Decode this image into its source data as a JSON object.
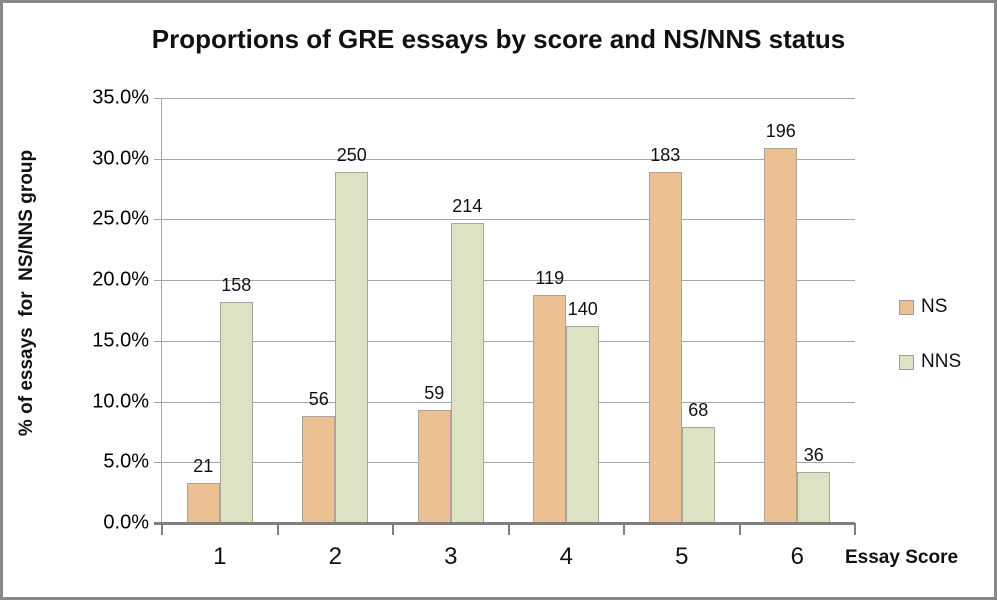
{
  "chart_data": {
    "type": "bar",
    "title": "Proportions of GRE essays by score and NS/NNS status",
    "xlabel": "Essay Score",
    "ylabel": "% of essays  for  NS/NNS group",
    "categories": [
      "1",
      "2",
      "3",
      "4",
      "5",
      "6"
    ],
    "series": [
      {
        "name": "NS",
        "color": "#EBC193",
        "counts": [
          21,
          56,
          59,
          119,
          183,
          196
        ],
        "percent_values": [
          3.3,
          8.8,
          9.3,
          18.8,
          28.9,
          30.9
        ]
      },
      {
        "name": "NNS",
        "color": "#DCE2C3",
        "counts": [
          158,
          250,
          214,
          140,
          68,
          36
        ],
        "percent_values": [
          18.2,
          28.9,
          24.7,
          16.2,
          7.9,
          4.2
        ]
      }
    ],
    "ylim": [
      0,
      35
    ],
    "ytick_step": 5,
    "ytick_labels": [
      "0.0%",
      "5.0%",
      "10.0%",
      "15.0%",
      "20.0%",
      "25.0%",
      "30.0%",
      "35.0%"
    ],
    "grid": true,
    "legend_position": "right",
    "bar_labels": "counts shown above each bar"
  },
  "colors": {
    "gridline": "#A6A6A6",
    "axis": "#7F7F7F",
    "frame_border": "#898989",
    "ns_fill": "#EBC193",
    "nns_fill": "#DCE2C3"
  }
}
